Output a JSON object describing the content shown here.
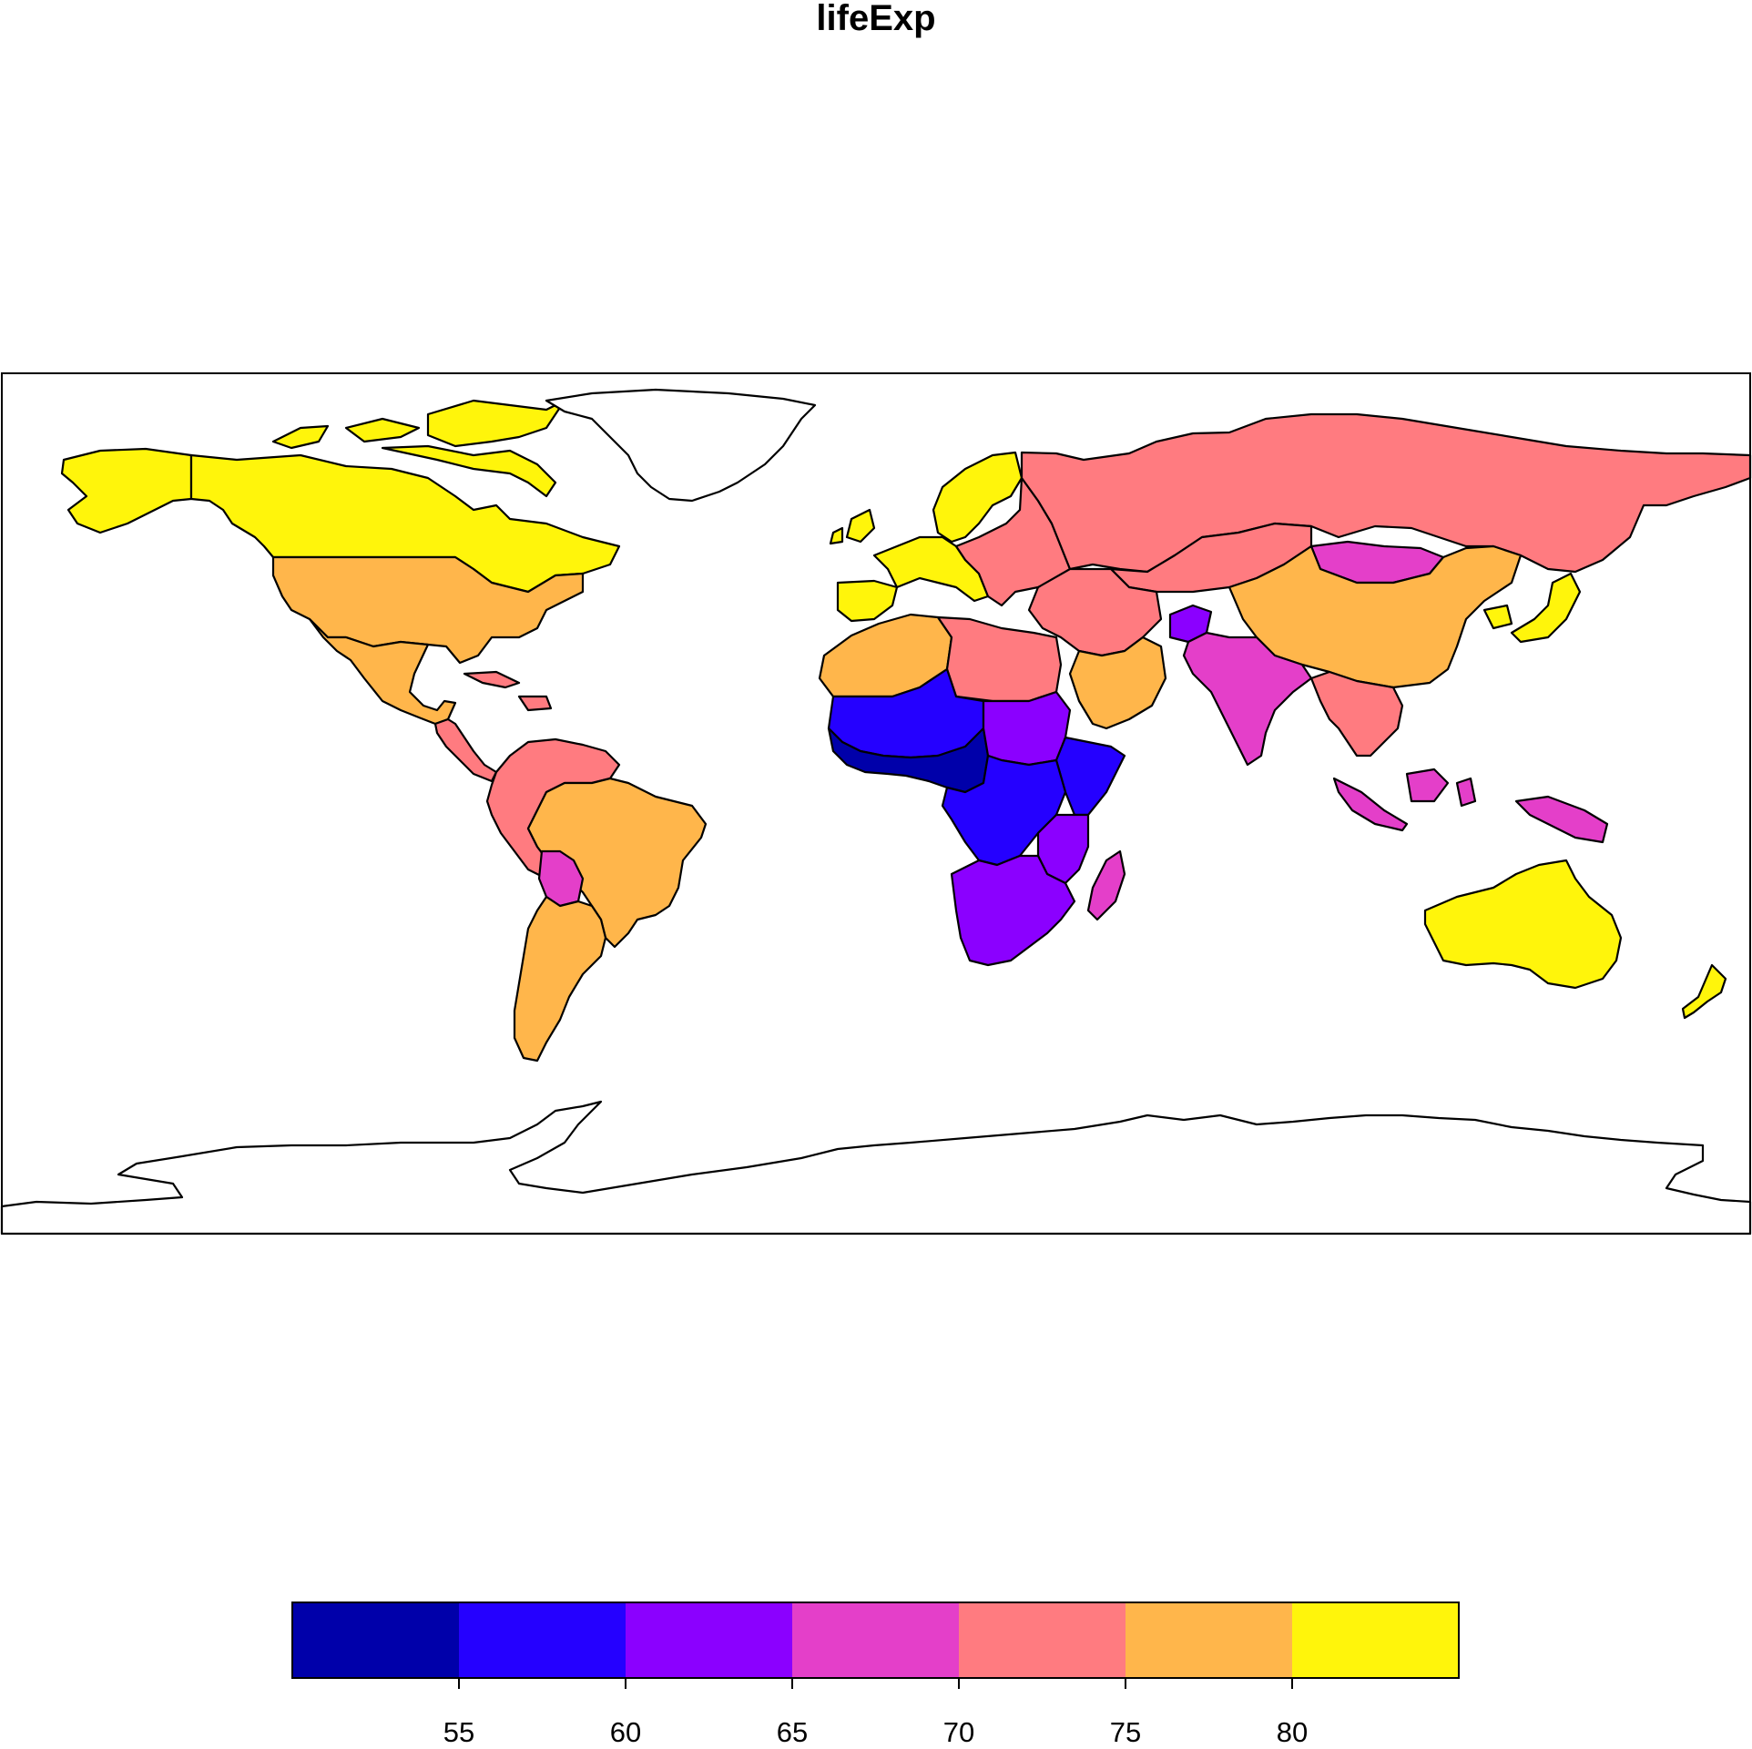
{
  "title": "lifeExp",
  "legend": {
    "bins": [
      {
        "from": 50,
        "to": 55,
        "color": "#0000AA"
      },
      {
        "from": 55,
        "to": 60,
        "color": "#2500FF"
      },
      {
        "from": 60,
        "to": 65,
        "color": "#8B00FF"
      },
      {
        "from": 65,
        "to": 70,
        "color": "#E43FC9"
      },
      {
        "from": 70,
        "to": 75,
        "color": "#FF7B80"
      },
      {
        "from": 75,
        "to": 80,
        "color": "#FFB64B"
      },
      {
        "from": 80,
        "to": 85,
        "color": "#FFF50B"
      }
    ],
    "ticks": [
      "55",
      "60",
      "65",
      "70",
      "75",
      "80"
    ]
  },
  "regions": [
    {
      "name": "Canada",
      "color": "#FFF50B"
    },
    {
      "name": "Arctic Archipelago",
      "color": "#FFF50B"
    },
    {
      "name": "Greenland",
      "color": "#FFFFFF"
    },
    {
      "name": "Alaska",
      "color": "#FFB64B"
    },
    {
      "name": "United States",
      "color": "#FFB64B"
    },
    {
      "name": "Mexico",
      "color": "#FFB64B"
    },
    {
      "name": "Central America",
      "color": "#FF7B80"
    },
    {
      "name": "Caribbean",
      "color": "#FF7B80"
    },
    {
      "name": "Northern South America",
      "color": "#FF7B80"
    },
    {
      "name": "Brazil",
      "color": "#FFB64B"
    },
    {
      "name": "Bolivia",
      "color": "#E43FC9"
    },
    {
      "name": "Southern Cone",
      "color": "#FFB64B"
    },
    {
      "name": "Iberia",
      "color": "#FFF50B"
    },
    {
      "name": "Western Europe",
      "color": "#FFF50B"
    },
    {
      "name": "Scandinavia",
      "color": "#FFF50B"
    },
    {
      "name": "Eastern Europe",
      "color": "#FF7B80"
    },
    {
      "name": "Russia",
      "color": "#FF7B80"
    },
    {
      "name": "Kazakhstan",
      "color": "#FF7B80"
    },
    {
      "name": "Mongolia",
      "color": "#E43FC9"
    },
    {
      "name": "China",
      "color": "#FFB64B"
    },
    {
      "name": "Japan",
      "color": "#FFF50B"
    },
    {
      "name": "Korea",
      "color": "#FFF50B"
    },
    {
      "name": "Middle East",
      "color": "#FF7B80"
    },
    {
      "name": "Arabian Peninsula",
      "color": "#FFB64B"
    },
    {
      "name": "Afghanistan",
      "color": "#8B00FF"
    },
    {
      "name": "South Asia",
      "color": "#E43FC9"
    },
    {
      "name": "Southeast Asia",
      "color": "#FF7B80"
    },
    {
      "name": "Indonesia",
      "color": "#E43FC9"
    },
    {
      "name": "New Guinea",
      "color": "#E43FC9"
    },
    {
      "name": "Australia",
      "color": "#FFF50B"
    },
    {
      "name": "New Zealand",
      "color": "#FFF50B"
    },
    {
      "name": "Northwest Africa",
      "color": "#FFB64B"
    },
    {
      "name": "Libya and Egypt",
      "color": "#FF7B80"
    },
    {
      "name": "Sahel",
      "color": "#2500FF"
    },
    {
      "name": "West Africa",
      "color": "#0000AA"
    },
    {
      "name": "Sudan",
      "color": "#8B00FF"
    },
    {
      "name": "Horn of Africa",
      "color": "#2500FF"
    },
    {
      "name": "Central Africa",
      "color": "#2500FF"
    },
    {
      "name": "East Africa",
      "color": "#8B00FF"
    },
    {
      "name": "Southern Africa",
      "color": "#8B00FF"
    },
    {
      "name": "Madagascar",
      "color": "#E43FC9"
    },
    {
      "name": "Antarctica",
      "color": "#FFFFFF"
    }
  ]
}
